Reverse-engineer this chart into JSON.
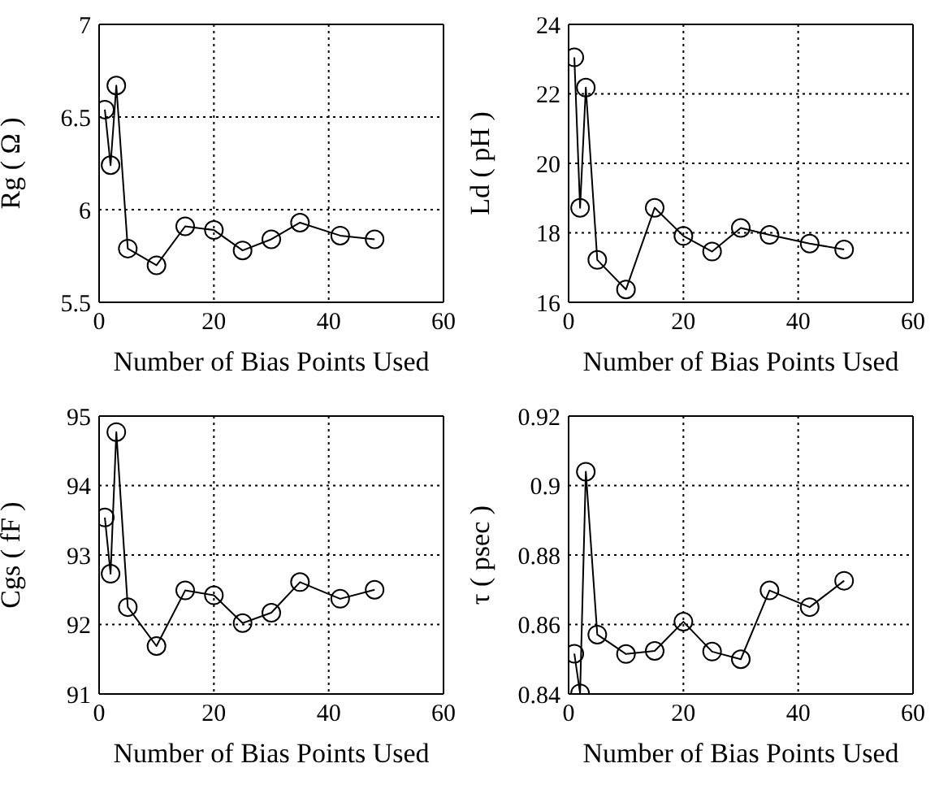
{
  "chart_data": [
    {
      "type": "line",
      "x": [
        1,
        2,
        3,
        5,
        10,
        15,
        20,
        25,
        30,
        35,
        42,
        48
      ],
      "series": [
        {
          "color": "#000000",
          "values": [
            6.54,
            6.24,
            6.67,
            5.79,
            5.7,
            5.91,
            5.89,
            5.78,
            5.84,
            5.93,
            5.86,
            5.84
          ]
        }
      ],
      "xlim": [
        0,
        60
      ],
      "xticks": [
        0,
        20,
        40,
        60
      ],
      "ylim": [
        5.5,
        7
      ],
      "yticks": [
        5.5,
        6,
        6.5,
        7
      ],
      "xlabel": "Number of Bias Points Used",
      "ylabel": "Rg ( Ω )",
      "grid": true,
      "marker": "circle",
      "line_style": "solid"
    },
    {
      "type": "line",
      "x": [
        1,
        2,
        3,
        5,
        10,
        15,
        20,
        25,
        30,
        35,
        42,
        48
      ],
      "series": [
        {
          "color": "#000000",
          "values": [
            23.05,
            18.72,
            22.18,
            17.22,
            16.37,
            18.72,
            17.91,
            17.46,
            18.14,
            17.94,
            17.69,
            17.52
          ]
        }
      ],
      "xlim": [
        0,
        60
      ],
      "xticks": [
        0,
        20,
        40,
        60
      ],
      "ylim": [
        16,
        24
      ],
      "yticks": [
        16,
        18,
        20,
        22,
        24
      ],
      "xlabel": "Number of Bias Points Used",
      "ylabel": "Ld ( pH )",
      "grid": true,
      "marker": "circle",
      "line_style": "solid"
    },
    {
      "type": "line",
      "x": [
        1,
        2,
        3,
        5,
        10,
        15,
        20,
        25,
        30,
        35,
        42,
        48
      ],
      "series": [
        {
          "color": "#000000",
          "values": [
            93.54,
            92.73,
            94.77,
            92.25,
            91.69,
            92.49,
            92.42,
            92.02,
            92.17,
            92.61,
            92.37,
            92.5
          ]
        }
      ],
      "xlim": [
        0,
        60
      ],
      "xticks": [
        0,
        20,
        40,
        60
      ],
      "ylim": [
        91,
        95
      ],
      "yticks": [
        91,
        92,
        93,
        94,
        95
      ],
      "xlabel": "Number of Bias Points Used",
      "ylabel": "Cgs ( fF )",
      "grid": true,
      "marker": "circle",
      "line_style": "solid"
    },
    {
      "type": "line",
      "x": [
        1,
        2,
        3,
        5,
        10,
        15,
        20,
        25,
        30,
        35,
        42,
        48
      ],
      "series": [
        {
          "color": "#000000",
          "values": [
            0.8516,
            0.8402,
            0.904,
            0.8571,
            0.8515,
            0.8524,
            0.8608,
            0.8522,
            0.85,
            0.8698,
            0.865,
            0.8726
          ]
        }
      ],
      "xlim": [
        0,
        60
      ],
      "xticks": [
        0,
        20,
        40,
        60
      ],
      "ylim": [
        0.84,
        0.92
      ],
      "yticks": [
        0.84,
        0.86,
        0.88,
        0.9,
        0.92
      ],
      "xlabel": "Number of Bias Points Used",
      "ylabel": "τ ( psec )",
      "grid": true,
      "marker": "circle",
      "line_style": "solid"
    }
  ]
}
